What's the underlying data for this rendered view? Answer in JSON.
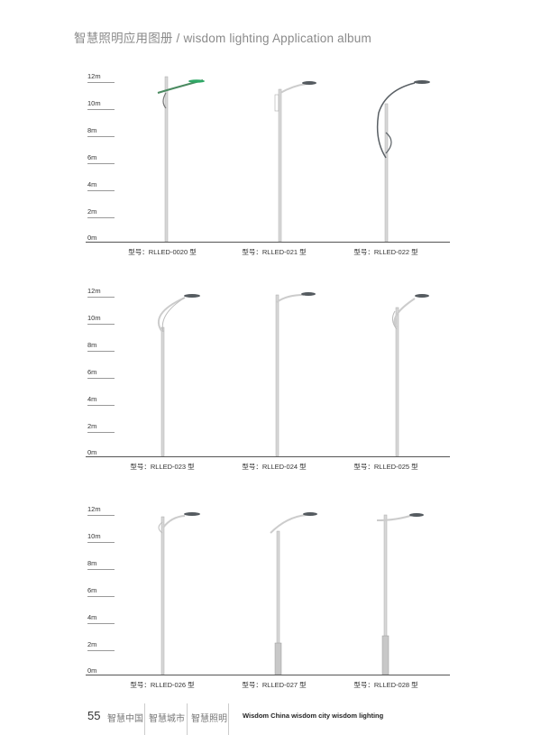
{
  "header": {
    "title": "智慧照明应用图册 / wisdom lighting Application album"
  },
  "ruler": [
    "12m",
    "10m",
    "8m",
    "6m",
    "4m",
    "2m",
    "0m"
  ],
  "sections": [
    {
      "models": [
        "型号：RLLED-0020 型",
        "型号：RLLED-021 型",
        "型号：RLLED-022 型"
      ]
    },
    {
      "models": [
        "型号：RLLED-023 型",
        "型号：RLLED-024 型",
        "型号：RLLED-025 型"
      ]
    },
    {
      "models": [
        "型号：RLLED-026 型",
        "型号：RLLED-027 型",
        "型号：RLLED-028 型"
      ]
    }
  ],
  "colors": {
    "pole": "#d8d8d8",
    "pole_edge": "#a8a8a8",
    "lamp_head": "#555b60",
    "lamp_green": "#2fa866",
    "arm_dark": "#5a6065"
  },
  "footer": {
    "page_number": "55",
    "cn_items": [
      "智慧中国",
      "智慧城市",
      "智慧照明"
    ],
    "en_text": "Wisdom China  wisdom city  wisdom lighting"
  }
}
